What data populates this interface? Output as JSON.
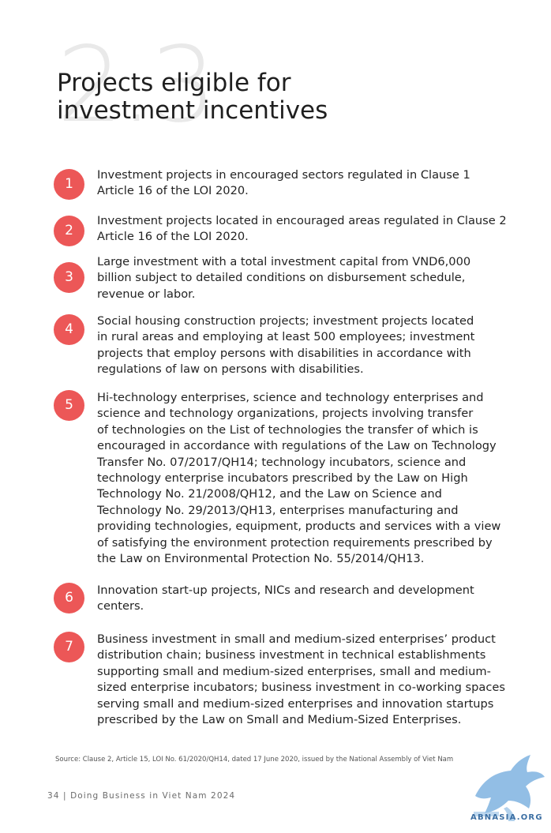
{
  "section": {
    "number": "2.3",
    "title_lines": [
      "Projects eligible for",
      "investment incentives"
    ]
  },
  "items": [
    {
      "number": "1",
      "lines": [
        "Investment projects in encouraged sectors regulated in Clause 1",
        "Article 16 of the LOI 2020."
      ]
    },
    {
      "number": "2",
      "lines": [
        "Investment projects located in encouraged areas regulated in Clause 2",
        "Article 16 of the LOI 2020."
      ]
    },
    {
      "number": "3",
      "lines": [
        "Large investment with a total investment capital from VND6,000",
        "billion subject to detailed conditions on disbursement schedule,",
        "revenue or labor."
      ]
    },
    {
      "number": "4",
      "lines": [
        "Social housing construction projects; investment projects located",
        "in rural areas and employing at least 500 employees; investment",
        "projects that employ persons with disabilities in accordance with",
        "regulations of law on persons with disabilities."
      ]
    },
    {
      "number": "5",
      "lines": [
        "Hi-technology enterprises, science and technology enterprises and",
        "science and technology organizations, projects involving transfer",
        "of technologies on the List of technologies the transfer of which is",
        "encouraged in accordance with regulations of the Law on Technology",
        "Transfer No. 07/2017/QH14; technology incubators, science and",
        "technology enterprise incubators prescribed by the Law on High",
        "Technology No. 21/2008/QH12, and the Law on Science and",
        "Technology No. 29/2013/QH13, enterprises manufacturing and",
        "providing technologies, equipment, products and services with a view",
        "of satisfying the environment protection requirements prescribed by",
        "the Law on Environmental Protection No. 55/2014/QH13."
      ]
    },
    {
      "number": "6",
      "lines": [
        "Innovation start-up projects, NICs and research and development",
        "centers."
      ]
    },
    {
      "number": "7",
      "lines": [
        "Business investment in small and medium-sized enterprises’ product",
        "distribution chain; business investment in technical establishments",
        "supporting small and medium-sized enterprises, small and medium-",
        "sized enterprise incubators; business investment in co-working spaces",
        "serving small and medium-sized enterprises and innovation startups",
        "prescribed by the Law on Small and Medium-Sized Enterprises."
      ]
    }
  ],
  "source": "Source: Clause 2, Article 15, LOI No. 61/2020/QH14, dated 17 June 2020, issued by the National Assembly of Viet Nam",
  "footer": "34 | Doing Business in Viet Nam 2024",
  "watermark": {
    "text": "ABNASIA.ORG"
  },
  "colors": {
    "badge": "#ec5757",
    "section_number": "#e9e9e9",
    "text": "#232323"
  }
}
